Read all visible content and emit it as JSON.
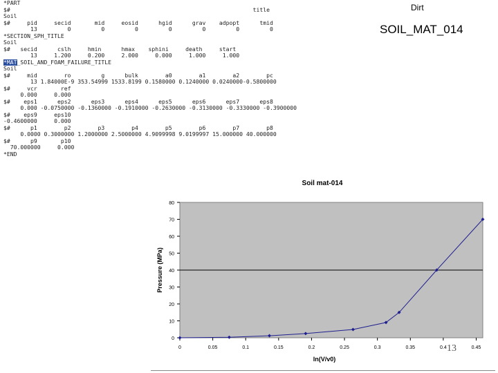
{
  "slide": {
    "label": "Dirt",
    "material_id": "SOIL_MAT_014",
    "page_number": "13"
  },
  "keyword_file": {
    "lines": [
      "*PART",
      "$#                                                                        title",
      "Soil",
      "$#     pid     secid       mid     eosid      hgid      grav    adpopt      tmid",
      "        13         0         0         0         0         0         0         0",
      "*SECTION_SPH_TITLE",
      "Soil",
      "$#   secid      cslh     hmin      hmax    sphini     death     start",
      "        13     1.200     0.200     2.000     0.000     1.000     1.000",
      "*MAT_SOIL_AND_FOAM_FAILURE_TITLE",
      "Soil",
      "$#     mid        ro         g      bulk        a0        a1        a2        pc",
      "        13 1.84000E-9 353.54999 1533.8199 0.1580000 0.1240000 0.0240000-0.5800000",
      "$#     vcr       ref",
      "     0.000     0.000",
      "$#    eps1      eps2      eps3      eps4      eps5      eps6      eps7      eps8",
      "     0.000 -0.0750000 -0.1360000 -0.1910000 -0.2630000 -0.3130000 -0.3330000 -0.3900000",
      "$#    eps9     eps10",
      "-0.4600000     0.000",
      "$#      p1        p2        p3        p4        p5        p6        p7        p8",
      "     0.0000 0.3000000 1.2000000 2.5000000 4.9099998 9.0199997 15.000000 40.000000",
      "$#      p9       p10",
      "  70.000000     0.000",
      "*END"
    ],
    "highlight_token": "*MAT",
    "highlight_line_rest": "_SOIL_AND_FOAM_FAILURE_TITLE"
  },
  "chart_data": {
    "type": "line",
    "title": "Soil mat-014",
    "xlabel": "ln(V/v0)",
    "ylabel": "Pressure (MPa)",
    "xlim": [
      0,
      0.46
    ],
    "ylim": [
      0,
      80
    ],
    "x_ticks": [
      "0",
      "0.05",
      "0.1",
      "0.15",
      "0.2",
      "0.25",
      "0.3",
      "0.35",
      "0.4",
      "0.45"
    ],
    "y_ticks": [
      "0",
      "10",
      "20",
      "30",
      "40",
      "50",
      "60",
      "70",
      "80"
    ],
    "grid": "horizontal gridline at 40",
    "plot_background": "#c0c0c0",
    "line_color": "#1f1f8f",
    "series": [
      {
        "x": [
          0,
          0.075,
          0.136,
          0.191,
          0.263,
          0.313,
          0.333,
          0.39,
          0.46
        ],
        "y": [
          0,
          0.3,
          1.2,
          2.5,
          4.91,
          9.02,
          15,
          40,
          70
        ]
      }
    ]
  }
}
